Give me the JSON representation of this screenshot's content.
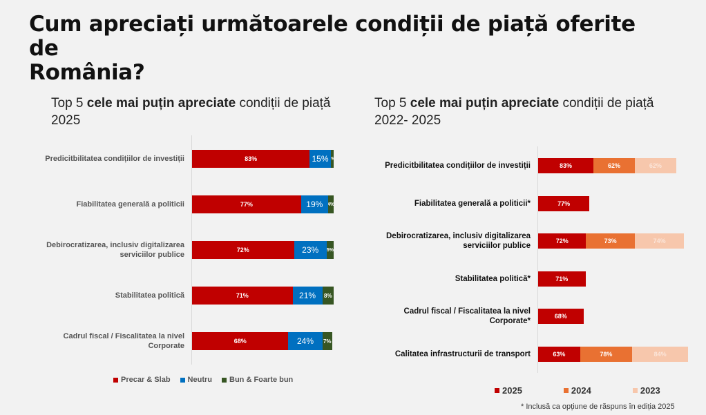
{
  "page": {
    "title_line1": "Cum apreciați următoarele condiții de piață oferite de",
    "title_line2": "România?",
    "footnote": "* Inclusă ca opțiune de răspuns în ediția 2025"
  },
  "chart_data": [
    {
      "type": "bar",
      "orientation": "horizontal-stacked",
      "title_prefix": "Top 5 ",
      "title_bold": "cele mai puțin apreciate",
      "title_suffix": " condiții de piață",
      "title_line2": "2025",
      "categories": [
        "Predicitbilitatea condițiilor de investiții",
        "Fiabilitatea generală a politicii",
        "Debirocratizarea, inclusiv digitalizarea serviciilor publice",
        "Stabilitatea politică",
        "Cadrul fiscal / Fiscalitatea la nivel Corporate"
      ],
      "series": [
        {
          "name": "Precar & Slab",
          "color": "#c00000",
          "values": [
            83,
            77,
            72,
            71,
            68
          ]
        },
        {
          "name": "Neutru",
          "color": "#0070c0",
          "values": [
            15,
            19,
            23,
            21,
            24
          ]
        },
        {
          "name": "Bun & Foarte bun",
          "color": "#375623",
          "values": [
            2,
            4,
            5,
            8,
            7
          ]
        }
      ],
      "data_labels": [
        [
          "83%",
          "15%",
          "2%"
        ],
        [
          "77%",
          "19%",
          "4%"
        ],
        [
          "72%",
          "23%",
          "5%"
        ],
        [
          "71%",
          "21%",
          "8%"
        ],
        [
          "68%",
          "24%",
          "7%"
        ]
      ],
      "xlim": [
        0,
        100
      ],
      "grid": false,
      "legend_position": "bottom"
    },
    {
      "type": "bar",
      "orientation": "horizontal-stacked",
      "title_prefix": "Top 5 ",
      "title_bold": "cele mai puțin apreciate",
      "title_suffix": " condiții de piață",
      "title_line2": "2022- 2025",
      "categories": [
        "Predicitbilitatea condițiilor de investiții",
        "Fiabilitatea generală a politicii*",
        "Debirocratizarea, inclusiv digitalizarea serviciilor publice",
        "Stabilitatea politică*",
        "Cadrul fiscal / Fiscalitatea la nivel Corporate*",
        "Calitatea infrastructurii de transport"
      ],
      "series": [
        {
          "name": "2025",
          "color": "#c00000",
          "values": [
            83,
            77,
            72,
            71,
            68,
            63
          ]
        },
        {
          "name": "2024",
          "color": "#e97132",
          "values": [
            62,
            null,
            73,
            null,
            null,
            78
          ]
        },
        {
          "name": "2023",
          "color": "#f7c7ac",
          "values": [
            62,
            null,
            74,
            null,
            null,
            84
          ]
        }
      ],
      "data_labels": [
        [
          "83%",
          "62%",
          "62%"
        ],
        [
          "77%",
          null,
          null
        ],
        [
          "72%",
          "73%",
          "74%"
        ],
        [
          "71%",
          null,
          null
        ],
        [
          "68%",
          null,
          null
        ],
        [
          "63%",
          "78%",
          "84%"
        ]
      ],
      "grid": false,
      "legend_position": "bottom"
    }
  ]
}
